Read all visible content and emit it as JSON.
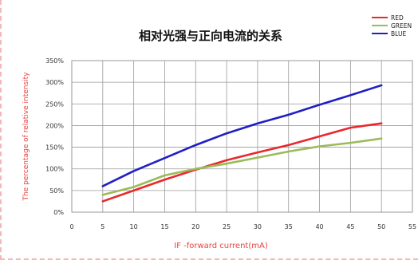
{
  "chart_data": {
    "type": "line",
    "title": "相对光强与正向电流的关系",
    "xlabel": "IF -forward current(mA)",
    "ylabel": "The percentage of relative intensity",
    "x_ticks": [
      "0",
      "5",
      "10",
      "15",
      "20",
      "25",
      "30",
      "35",
      "40",
      "45",
      "50",
      "55"
    ],
    "y_ticks": [
      "0%",
      "50%",
      "100%",
      "150%",
      "200%",
      "250%",
      "300%",
      "350%"
    ],
    "xlim": [
      0,
      55
    ],
    "ylim": [
      0,
      350
    ],
    "grid": true,
    "legend_position": "top-right",
    "x": [
      5,
      10,
      15,
      20,
      25,
      30,
      35,
      40,
      45,
      50
    ],
    "series": [
      {
        "name": "RED",
        "color": "#e8282d",
        "values": [
          25,
          50,
          75,
          98,
          120,
          138,
          155,
          175,
          195,
          205
        ]
      },
      {
        "name": "GREEN",
        "color": "#9bbb59",
        "values": [
          40,
          58,
          85,
          100,
          112,
          126,
          140,
          152,
          160,
          170
        ]
      },
      {
        "name": "BLUE",
        "color": "#1f1fc4",
        "values": [
          60,
          95,
          125,
          155,
          182,
          205,
          225,
          248,
          270,
          293
        ]
      }
    ]
  }
}
